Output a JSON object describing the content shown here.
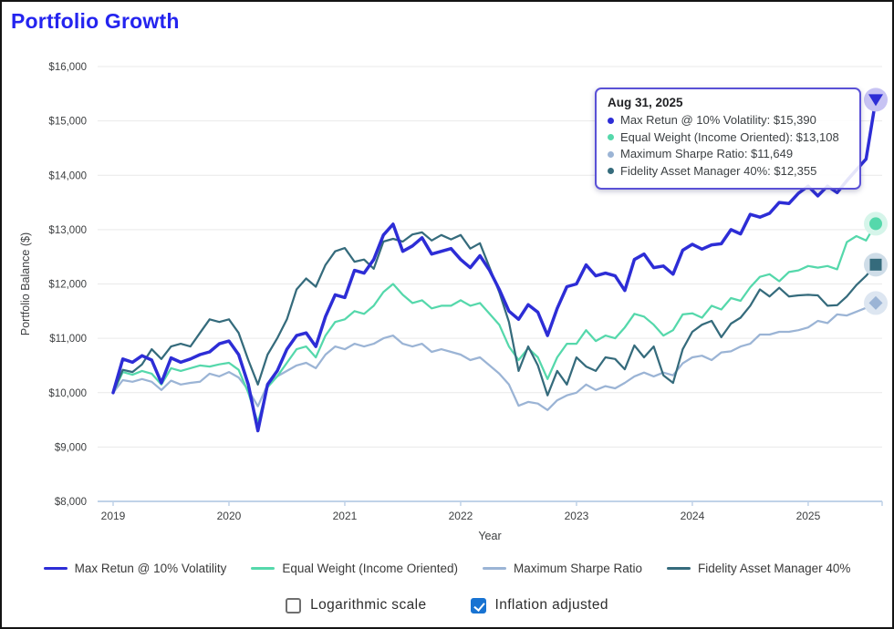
{
  "page": {
    "title": "Portfolio Growth",
    "title_color": "#2424ef",
    "background": "#ffffff"
  },
  "chart_data": {
    "type": "line",
    "title": "Portfolio Growth",
    "xlabel": "Year",
    "ylabel": "Portfolio Balance ($)",
    "ylim": [
      8000,
      16000
    ],
    "ytick_step": 1000,
    "ytick_labels": [
      "$8,000",
      "$9,000",
      "$10,000",
      "$11,000",
      "$12,000",
      "$13,000",
      "$14,000",
      "$15,000",
      "$16,000"
    ],
    "xtick_labels": [
      "2019",
      "2020",
      "2021",
      "2022",
      "2023",
      "2024",
      "2025"
    ],
    "x_unit": "month",
    "x_range": [
      "Jan 2019",
      "Aug 2025"
    ],
    "grid": true,
    "legend_position": "bottom",
    "series": [
      {
        "name": "Max Retun @ 10% Volatility",
        "color": "#2d2dd6",
        "halo": "#c7c3f3",
        "marker": "triangle-down",
        "line_width": 3.5,
        "final_value": 15390,
        "values": [
          10000,
          10620,
          10560,
          10680,
          10600,
          10180,
          10640,
          10560,
          10620,
          10700,
          10750,
          10900,
          10950,
          10700,
          10150,
          9300,
          10150,
          10400,
          10800,
          11050,
          11100,
          10850,
          11400,
          11800,
          11750,
          12250,
          12200,
          12450,
          12900,
          13100,
          12600,
          12700,
          12850,
          12550,
          12600,
          12650,
          12450,
          12300,
          12520,
          12250,
          11900,
          11500,
          11350,
          11620,
          11480,
          11050,
          11550,
          11950,
          12000,
          12350,
          12150,
          12200,
          12150,
          11880,
          12450,
          12550,
          12300,
          12330,
          12180,
          12620,
          12730,
          12640,
          12720,
          12740,
          13000,
          12920,
          13280,
          13230,
          13300,
          13500,
          13480,
          13670,
          13800,
          13620,
          13800,
          13680,
          13900,
          14100,
          14300,
          15390
        ]
      },
      {
        "name": "Equal Weight (Income Oriented)",
        "color": "#55d8ab",
        "halo": "#d6f5ea",
        "marker": "circle",
        "line_width": 2.25,
        "final_value": 13108,
        "values": [
          10000,
          10380,
          10330,
          10400,
          10350,
          10150,
          10450,
          10400,
          10450,
          10500,
          10480,
          10520,
          10550,
          10420,
          10000,
          9450,
          10100,
          10300,
          10550,
          10800,
          10850,
          10650,
          11050,
          11300,
          11350,
          11500,
          11450,
          11600,
          11850,
          12000,
          11800,
          11650,
          11700,
          11550,
          11600,
          11600,
          11700,
          11600,
          11650,
          11450,
          11250,
          10850,
          10600,
          10820,
          10650,
          10250,
          10650,
          10900,
          10900,
          11150,
          10950,
          11050,
          11000,
          11200,
          11450,
          11400,
          11250,
          11050,
          11150,
          11440,
          11460,
          11380,
          11600,
          11530,
          11740,
          11690,
          11940,
          12130,
          12180,
          12050,
          12220,
          12250,
          12330,
          12300,
          12330,
          12270,
          12770,
          12880,
          12800,
          13108
        ]
      },
      {
        "name": "Maximum Sharpe Ratio",
        "color": "#9bb4d5",
        "halo": "#dde6f1",
        "marker": "diamond",
        "line_width": 2.25,
        "final_value": 11649,
        "values": [
          10000,
          10230,
          10200,
          10250,
          10200,
          10050,
          10220,
          10150,
          10180,
          10200,
          10350,
          10300,
          10380,
          10280,
          10050,
          9750,
          10150,
          10300,
          10400,
          10500,
          10550,
          10450,
          10700,
          10850,
          10800,
          10900,
          10850,
          10900,
          11000,
          11050,
          10900,
          10850,
          10900,
          10750,
          10800,
          10750,
          10700,
          10600,
          10650,
          10500,
          10350,
          10150,
          9760,
          9830,
          9800,
          9680,
          9860,
          9950,
          10000,
          10150,
          10050,
          10120,
          10080,
          10180,
          10300,
          10370,
          10300,
          10370,
          10320,
          10540,
          10650,
          10680,
          10600,
          10740,
          10760,
          10850,
          10900,
          11070,
          11070,
          11120,
          11120,
          11150,
          11200,
          11320,
          11280,
          11440,
          11420,
          11490,
          11560,
          11649
        ]
      },
      {
        "name": "Fidelity Asset Manager 40%",
        "color": "#356b7c",
        "halo": "#cfdde8",
        "marker": "square",
        "line_width": 2.25,
        "final_value": 12355,
        "values": [
          10000,
          10420,
          10380,
          10520,
          10800,
          10620,
          10850,
          10900,
          10850,
          11100,
          11350,
          11300,
          11350,
          11100,
          10600,
          10150,
          10700,
          11000,
          11350,
          11900,
          12100,
          11950,
          12350,
          12600,
          12660,
          12410,
          12450,
          12280,
          12780,
          12830,
          12780,
          12910,
          12950,
          12800,
          12900,
          12820,
          12900,
          12650,
          12750,
          12300,
          11850,
          11300,
          10400,
          10850,
          10500,
          9950,
          10400,
          10150,
          10650,
          10480,
          10400,
          10650,
          10620,
          10430,
          10870,
          10650,
          10850,
          10320,
          10180,
          10800,
          11120,
          11250,
          11320,
          11020,
          11270,
          11380,
          11600,
          11900,
          11770,
          11930,
          11770,
          11790,
          11800,
          11790,
          11600,
          11610,
          11770,
          11980,
          12150,
          12355
        ]
      }
    ]
  },
  "tooltip": {
    "date": "Aug 31, 2025",
    "border_color": "#5a51d6",
    "rows": [
      {
        "label": "Max Retun @ 10% Volatility",
        "value": "$15,390",
        "color": "#2d2dd6"
      },
      {
        "label": "Equal Weight (Income Oriented)",
        "value": "$13,108",
        "color": "#55d8ab"
      },
      {
        "label": "Maximum Sharpe Ratio",
        "value": "$11,649",
        "color": "#9bb4d5"
      },
      {
        "label": "Fidelity Asset Manager 40%",
        "value": "$12,355",
        "color": "#356b7c"
      }
    ]
  },
  "controls": {
    "log_scale": {
      "label": "Logarithmic scale",
      "checked": false
    },
    "inflation": {
      "label": "Inflation adjusted",
      "checked": true,
      "checked_color": "#1873d2"
    }
  }
}
